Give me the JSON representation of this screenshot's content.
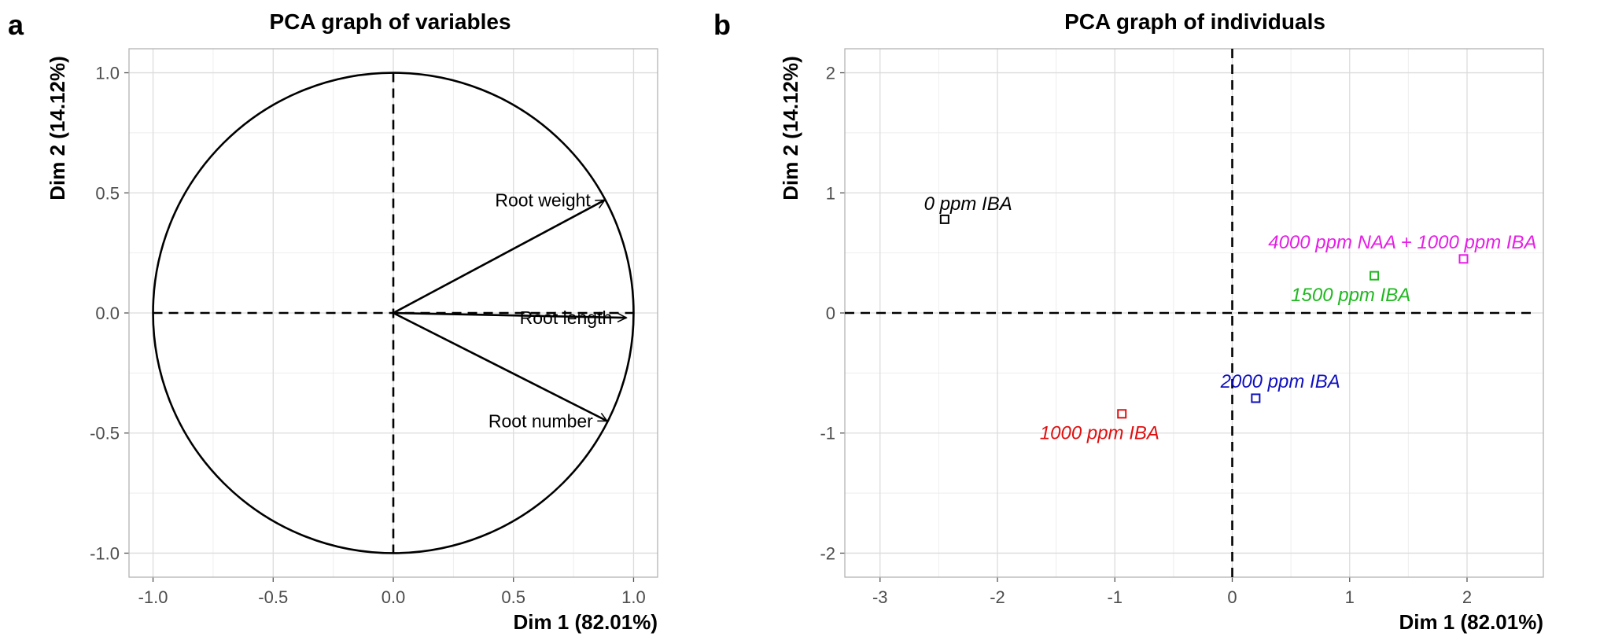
{
  "panels": [
    {
      "letter": "a"
    },
    {
      "letter": "b"
    }
  ],
  "chart_data": [
    {
      "type": "scatter",
      "subtype": "pca-variables-correlation-circle",
      "title": "PCA graph of variables",
      "xlabel": "Dim 1 (82.01%)",
      "ylabel": "Dim 2 (14.12%)",
      "xlim": [
        -1.1,
        1.1
      ],
      "ylim": [
        -1.1,
        1.1
      ],
      "xticks": [
        "-1.0",
        "-0.5",
        "0.0",
        "0.5",
        "1.0"
      ],
      "yticks": [
        "-1.0",
        "-0.5",
        "0.0",
        "0.5",
        "1.0"
      ],
      "grid": true,
      "unit_circle": true,
      "vectors": [
        {
          "name": "Root weight",
          "x": 0.88,
          "y": 0.47
        },
        {
          "name": "Root length",
          "x": 0.97,
          "y": -0.02
        },
        {
          "name": "Root number",
          "x": 0.89,
          "y": -0.45
        }
      ]
    },
    {
      "type": "scatter",
      "subtype": "pca-individuals",
      "title": "PCA graph of individuals",
      "xlabel": "Dim 1 (82.01%)",
      "ylabel": "Dim 2 (14.12%)",
      "xlim": [
        -3.3,
        2.65
      ],
      "ylim": [
        -2.2,
        2.2
      ],
      "xticks": [
        "-3",
        "-2",
        "-1",
        "0",
        "1",
        "2"
      ],
      "yticks": [
        "-2",
        "-1",
        "0",
        "1",
        "2"
      ],
      "grid": true,
      "points": [
        {
          "name": "0 ppm IBA",
          "x": -2.45,
          "y": 0.78,
          "color": "#000000",
          "lx": -2.25,
          "ly": 0.91
        },
        {
          "name": "4000 ppm NAA + 1000 ppm IBA",
          "x": 1.97,
          "y": 0.45,
          "color": "#e61ee6",
          "lx": 1.45,
          "ly": 0.59
        },
        {
          "name": "1500 ppm IBA",
          "x": 1.21,
          "y": 0.31,
          "color": "#1fb81f",
          "lx": 1.01,
          "ly": 0.15
        },
        {
          "name": "2000 ppm IBA",
          "x": 0.2,
          "y": -0.71,
          "color": "#1010c0",
          "lx": 0.41,
          "ly": -0.57
        },
        {
          "name": "1000 ppm IBA",
          "x": -0.94,
          "y": -0.84,
          "color": "#e01010",
          "lx": -1.13,
          "ly": -1.0
        }
      ]
    }
  ]
}
